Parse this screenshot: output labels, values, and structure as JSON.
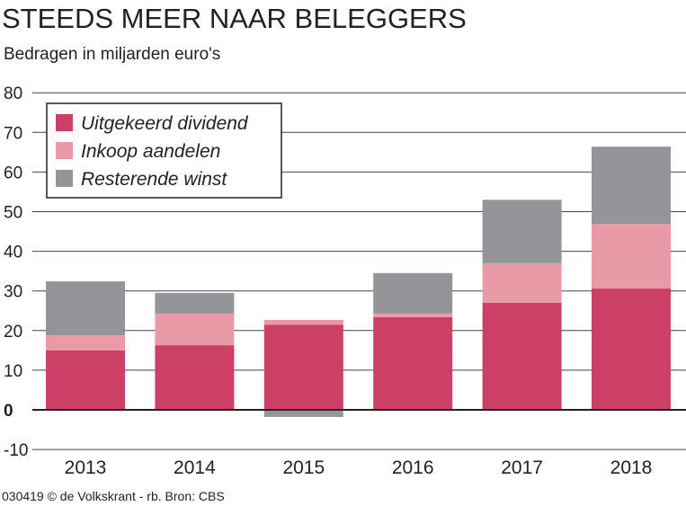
{
  "chart_data": {
    "type": "bar",
    "stacked": true,
    "title": "STEEDS MEER NAAR BELEGGERS",
    "subtitle": "Bedragen in miljarden euro's",
    "categories": [
      "2013",
      "2014",
      "2015",
      "2016",
      "2017",
      "2018"
    ],
    "series": [
      {
        "name": "Uitgekeerd dividend",
        "color": "#cc3f66",
        "values": [
          15.0,
          16.3,
          21.5,
          23.4,
          27.0,
          30.6
        ]
      },
      {
        "name": "Inkoop aandelen",
        "color": "#e89aa6",
        "values": [
          3.8,
          8.0,
          1.2,
          0.9,
          10.0,
          16.3
        ]
      },
      {
        "name": "Resterende winst",
        "color": "#939598",
        "values": [
          13.6,
          5.2,
          -1.8,
          10.2,
          16.0,
          19.5
        ]
      }
    ],
    "yticks": [
      "80",
      "70",
      "60",
      "50",
      "40",
      "30",
      "20",
      "10",
      "0",
      "-10"
    ],
    "ylim": [
      -10,
      80
    ],
    "grid": true,
    "legend": "top-left",
    "xlabel": "",
    "ylabel": ""
  },
  "footer": "030419 © de Volkskrant - rb. Bron: CBS"
}
